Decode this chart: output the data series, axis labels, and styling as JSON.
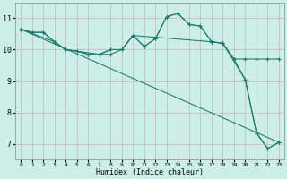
{
  "xlabel": "Humidex (Indice chaleur)",
  "bg_color": "#cceee8",
  "line_color": "#1a7a6a",
  "grid_color": "#ccbbbb",
  "xlim": [
    -0.5,
    23.5
  ],
  "ylim": [
    6.5,
    11.5
  ],
  "yticks": [
    7,
    8,
    9,
    10,
    11
  ],
  "xticks": [
    0,
    1,
    2,
    3,
    4,
    5,
    6,
    7,
    8,
    9,
    10,
    11,
    12,
    13,
    14,
    15,
    16,
    17,
    18,
    19,
    20,
    21,
    22,
    23
  ],
  "line1_x": [
    0,
    1,
    2,
    3,
    4,
    5,
    6,
    7,
    8,
    9,
    10,
    11,
    12,
    13,
    14,
    15,
    16,
    17,
    18,
    19,
    20,
    21,
    22,
    23
  ],
  "line1_y": [
    10.65,
    10.55,
    10.55,
    10.25,
    10.0,
    9.95,
    9.85,
    9.85,
    10.0,
    10.0,
    10.45,
    10.1,
    10.35,
    11.05,
    11.15,
    10.8,
    10.75,
    10.25,
    10.2,
    9.7,
    9.05,
    7.35,
    6.85,
    7.05
  ],
  "line2_x": [
    0,
    3,
    4,
    7,
    8,
    9,
    10,
    11,
    12,
    13,
    14,
    15,
    16,
    17,
    18,
    20,
    21,
    22,
    23
  ],
  "line2_y": [
    10.65,
    10.25,
    10.0,
    9.85,
    9.85,
    10.0,
    10.45,
    10.1,
    10.35,
    11.05,
    11.15,
    10.8,
    10.75,
    10.25,
    10.2,
    9.05,
    7.35,
    6.85,
    7.05
  ],
  "line3_x": [
    0,
    23
  ],
  "line3_y": [
    10.65,
    7.05
  ],
  "line4_x": [
    0,
    1,
    2,
    3,
    4,
    5,
    6,
    7,
    8,
    9,
    10,
    17,
    18,
    19,
    20,
    21,
    22,
    23
  ],
  "line4_y": [
    10.65,
    10.55,
    10.55,
    10.25,
    10.0,
    9.95,
    9.85,
    9.85,
    10.0,
    10.0,
    10.45,
    10.25,
    10.2,
    9.7,
    9.7,
    9.7,
    9.7,
    9.7
  ]
}
